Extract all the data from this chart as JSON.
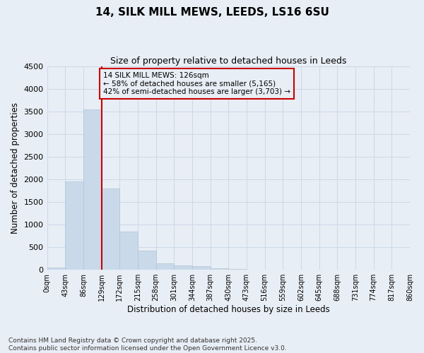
{
  "title_line1": "14, SILK MILL MEWS, LEEDS, LS16 6SU",
  "title_line2": "Size of property relative to detached houses in Leeds",
  "xlabel": "Distribution of detached houses by size in Leeds",
  "ylabel": "Number of detached properties",
  "bar_values": [
    50,
    1950,
    3550,
    1800,
    850,
    420,
    150,
    100,
    75,
    30,
    15,
    8,
    5,
    3,
    2,
    1,
    1,
    1,
    0,
    0
  ],
  "bin_labels": [
    "0sqm",
    "43sqm",
    "86sqm",
    "129sqm",
    "172sqm",
    "215sqm",
    "258sqm",
    "301sqm",
    "344sqm",
    "387sqm",
    "430sqm",
    "473sqm",
    "516sqm",
    "559sqm",
    "602sqm",
    "645sqm",
    "688sqm",
    "731sqm",
    "774sqm",
    "817sqm",
    "860sqm"
  ],
  "bar_color": "#c9d9ea",
  "bar_edge_color": "#b0c4d8",
  "grid_color": "#ccd8e8",
  "bg_color": "#e8eef5",
  "property_line_x": 3.0,
  "annotation_text": "14 SILK MILL MEWS: 126sqm\n← 58% of detached houses are smaller (5,165)\n42% of semi-detached houses are larger (3,703) →",
  "annotation_box_color": "#cc0000",
  "ylim": [
    0,
    4500
  ],
  "yticks": [
    0,
    500,
    1000,
    1500,
    2000,
    2500,
    3000,
    3500,
    4000,
    4500
  ],
  "footer_line1": "Contains HM Land Registry data © Crown copyright and database right 2025.",
  "footer_line2": "Contains public sector information licensed under the Open Government Licence v3.0."
}
